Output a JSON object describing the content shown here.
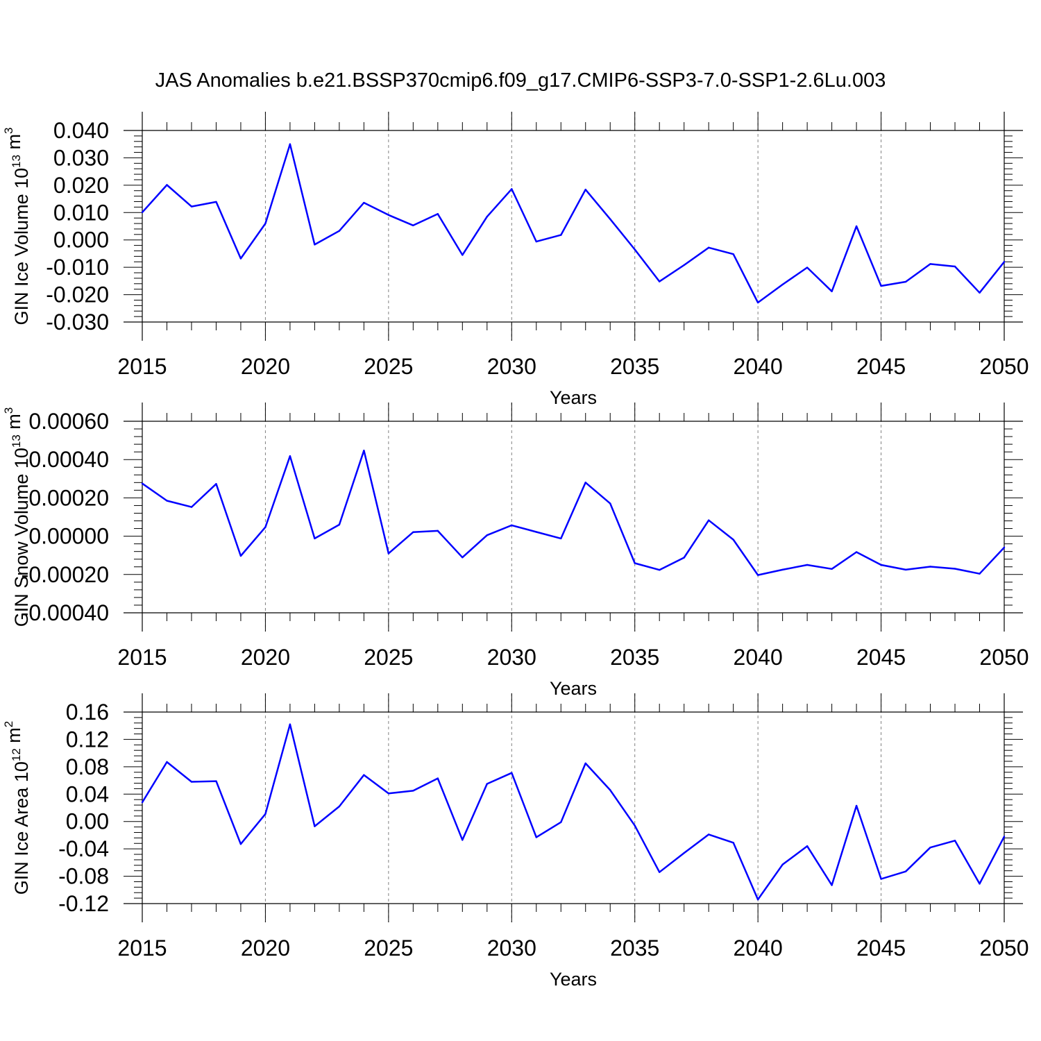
{
  "title": "JAS Anomalies b.e21.BSSP370cmip6.f09_g17.CMIP6-SSP3-7.0-SSP1-2.6Lu.003",
  "colors": {
    "line": "#0000ff",
    "axis": "#000000",
    "grid": "#808080"
  },
  "chart_data": [
    {
      "type": "line",
      "ylabel": "GIN Ice Volume 10",
      "ylabel_sup": "13",
      "ylabel_unit": " m",
      "ylabel_unit_sup": "3",
      "xlabel": "Years",
      "xlim": [
        2015,
        2050
      ],
      "ylim": [
        -0.03,
        0.04
      ],
      "yticks": [
        -0.03,
        -0.02,
        -0.01,
        0.0,
        0.01,
        0.02,
        0.03,
        0.04
      ],
      "ytick_labels": [
        "-0.030",
        "-0.020",
        "-0.010",
        "0.000",
        "0.010",
        "0.020",
        "0.030",
        "0.040"
      ],
      "xticks": [
        2015,
        2020,
        2025,
        2030,
        2035,
        2040,
        2045,
        2050
      ],
      "xtick_labels": [
        "2015",
        "2020",
        "2025",
        "2030",
        "2035",
        "2040",
        "2045",
        "2050"
      ],
      "x": [
        2015,
        2016,
        2017,
        2018,
        2019,
        2020,
        2021,
        2022,
        2023,
        2024,
        2025,
        2026,
        2027,
        2028,
        2029,
        2030,
        2031,
        2032,
        2033,
        2034,
        2035,
        2036,
        2037,
        2038,
        2039,
        2040,
        2041,
        2042,
        2043,
        2044,
        2045,
        2046,
        2047,
        2048,
        2049,
        2050
      ],
      "values": [
        0.0101,
        0.0201,
        0.0122,
        0.0139,
        -0.0068,
        0.006,
        0.035,
        -0.0017,
        0.0033,
        0.0136,
        0.0091,
        0.0053,
        0.0095,
        -0.0055,
        0.0085,
        0.0186,
        -0.0006,
        0.0018,
        0.0184,
        0.0076,
        -0.0035,
        -0.0152,
        -0.0092,
        -0.0028,
        -0.0052,
        -0.0229,
        -0.0163,
        -0.0101,
        -0.0188,
        0.005,
        -0.0168,
        -0.0153,
        -0.0088,
        -0.0097,
        -0.0193,
        -0.008
      ]
    },
    {
      "type": "line",
      "ylabel": "GIN Snow Volume 10",
      "ylabel_sup": "13",
      "ylabel_unit": " m",
      "ylabel_unit_sup": "3",
      "xlabel": "Years",
      "xlim": [
        2015,
        2050
      ],
      "ylim": [
        -0.0004,
        0.0006
      ],
      "yticks": [
        -0.0004,
        -0.0002,
        0.0,
        0.0002,
        0.0004,
        0.0006
      ],
      "ytick_labels": [
        "-0.00040",
        "-0.00020",
        "0.00000",
        "0.00020",
        "0.00040",
        "0.00060"
      ],
      "xticks": [
        2015,
        2020,
        2025,
        2030,
        2035,
        2040,
        2045,
        2050
      ],
      "xtick_labels": [
        "2015",
        "2020",
        "2025",
        "2030",
        "2035",
        "2040",
        "2045",
        "2050"
      ],
      "x": [
        2015,
        2016,
        2017,
        2018,
        2019,
        2020,
        2021,
        2022,
        2023,
        2024,
        2025,
        2026,
        2027,
        2028,
        2029,
        2030,
        2031,
        2032,
        2033,
        2034,
        2035,
        2036,
        2037,
        2038,
        2039,
        2040,
        2041,
        2042,
        2043,
        2044,
        2045,
        2046,
        2047,
        2048,
        2049,
        2050
      ],
      "values": [
        0.000275,
        0.000185,
        0.000152,
        0.000273,
        -0.000103,
        4.7e-05,
        0.000418,
        -1.2e-05,
        6e-05,
        0.000447,
        -9e-05,
        2.1e-05,
        2.8e-05,
        -0.000111,
        5e-06,
        5.7e-05,
        2.2e-05,
        -1.2e-05,
        0.00028,
        0.000171,
        -0.000141,
        -0.000176,
        -0.000112,
        8.3e-05,
        -1.8e-05,
        -0.000203,
        -0.000175,
        -0.00015,
        -0.000171,
        -8.3e-05,
        -0.00015,
        -0.000175,
        -0.000159,
        -0.00017,
        -0.000196,
        -5.9e-05
      ]
    },
    {
      "type": "line",
      "ylabel": "GIN Ice Area 10",
      "ylabel_sup": "12",
      "ylabel_unit": " m",
      "ylabel_unit_sup": "2",
      "xlabel": "Years",
      "xlim": [
        2015,
        2050
      ],
      "ylim": [
        -0.12,
        0.16
      ],
      "yticks": [
        -0.12,
        -0.08,
        -0.04,
        0.0,
        0.04,
        0.08,
        0.12,
        0.16
      ],
      "ytick_labels": [
        "-0.12",
        "-0.08",
        "-0.04",
        "0.00",
        "0.04",
        "0.08",
        "0.12",
        "0.16"
      ],
      "xticks": [
        2015,
        2020,
        2025,
        2030,
        2035,
        2040,
        2045,
        2050
      ],
      "xtick_labels": [
        "2015",
        "2020",
        "2025",
        "2030",
        "2035",
        "2040",
        "2045",
        "2050"
      ],
      "x": [
        2015,
        2016,
        2017,
        2018,
        2019,
        2020,
        2021,
        2022,
        2023,
        2024,
        2025,
        2026,
        2027,
        2028,
        2029,
        2030,
        2031,
        2032,
        2033,
        2034,
        2035,
        2036,
        2037,
        2038,
        2039,
        2040,
        2041,
        2042,
        2043,
        2044,
        2045,
        2046,
        2047,
        2048,
        2049,
        2050
      ],
      "values": [
        0.028,
        0.087,
        0.058,
        0.059,
        -0.033,
        0.011,
        0.142,
        -0.007,
        0.022,
        0.068,
        0.041,
        0.045,
        0.063,
        -0.027,
        0.055,
        0.071,
        -0.023,
        -0.001,
        0.085,
        0.046,
        -0.006,
        -0.074,
        -0.046,
        -0.019,
        -0.031,
        -0.114,
        -0.063,
        -0.036,
        -0.093,
        0.023,
        -0.084,
        -0.073,
        -0.038,
        -0.028,
        -0.091,
        -0.022
      ]
    }
  ]
}
